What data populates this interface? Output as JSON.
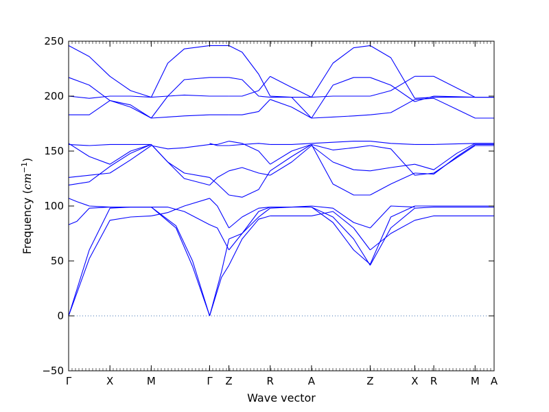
{
  "chart_data": {
    "type": "line",
    "title": "",
    "xlabel": "Wave vector",
    "ylabel_prefix": "Frequency (",
    "ylabel_unit": "cm",
    "ylabel_exp": "−1",
    "ylabel_suffix": ")",
    "ylim": [
      -50,
      250
    ],
    "yticks": [
      -50,
      0,
      50,
      100,
      150,
      200,
      250
    ],
    "grid": false,
    "legend": "none",
    "line_color": "#0000ff",
    "zero_line_color": "#3a6fb0",
    "high_symmetry_points": [
      {
        "label": "Γ",
        "x": 0.0
      },
      {
        "label": "X",
        "x": 0.5
      },
      {
        "label": "M",
        "x": 1.0
      },
      {
        "label": "Γ",
        "x": 1.707
      },
      {
        "label": "Z",
        "x": 1.94
      },
      {
        "label": "R",
        "x": 2.44
      },
      {
        "label": "A",
        "x": 2.94
      },
      {
        "label": "Z",
        "x": 3.65
      },
      {
        "label": "X",
        "x": 4.19
      },
      {
        "label": "R",
        "x": 4.42
      },
      {
        "label": "M",
        "x": 4.92
      },
      {
        "label": "A",
        "x": 5.15
      }
    ],
    "xlim": [
      0.0,
      5.15
    ],
    "series": [
      {
        "x": [
          0,
          0.25,
          0.5,
          0.75,
          1.0
        ],
        "y": [
          0,
          52,
          87,
          90,
          91
        ]
      },
      {
        "x": [
          0,
          0.25,
          0.5,
          0.75,
          1.0
        ],
        "y": [
          0,
          60,
          98,
          99,
          99
        ]
      },
      {
        "x": [
          0,
          0.1,
          0.25,
          0.5,
          0.75,
          1.0
        ],
        "y": [
          83,
          86,
          98,
          99,
          99,
          99
        ]
      },
      {
        "x": [
          0,
          0.1,
          0.25,
          0.5,
          0.75,
          1.0
        ],
        "y": [
          107,
          104,
          100,
          99,
          99,
          99
        ]
      },
      {
        "x": [
          0,
          0.25,
          0.5,
          0.75,
          1.0
        ],
        "y": [
          126,
          128,
          130,
          142,
          155
        ]
      },
      {
        "x": [
          0,
          0.25,
          0.5,
          0.75,
          1.0
        ],
        "y": [
          119,
          122,
          136,
          148,
          156
        ]
      },
      {
        "x": [
          0,
          0.25,
          0.5,
          0.75,
          1.0
        ],
        "y": [
          156,
          155,
          156,
          156,
          156
        ]
      },
      {
        "x": [
          0,
          0.25,
          0.5,
          0.75,
          1.0
        ],
        "y": [
          157,
          145,
          138,
          150,
          156
        ]
      },
      {
        "x": [
          0,
          0.25,
          0.5,
          0.75,
          1.0
        ],
        "y": [
          183,
          183,
          196,
          190,
          180
        ]
      },
      {
        "x": [
          0,
          0.25,
          0.5,
          0.75,
          1.0
        ],
        "y": [
          200,
          198,
          200,
          200,
          199
        ]
      },
      {
        "x": [
          0,
          0.25,
          0.5,
          0.75,
          1.0
        ],
        "y": [
          217,
          210,
          196,
          192,
          180
        ]
      },
      {
        "x": [
          0,
          0.25,
          0.5,
          0.75,
          1.0
        ],
        "y": [
          246,
          236,
          218,
          205,
          199
        ]
      },
      {
        "x": [
          1.0,
          1.2,
          1.4,
          1.707
        ],
        "y": [
          91,
          94,
          100,
          107
        ]
      },
      {
        "x": [
          1.0,
          1.2,
          1.4,
          1.707
        ],
        "y": [
          99,
          99,
          95,
          83
        ]
      },
      {
        "x": [
          1.0,
          1.3,
          1.5,
          1.707
        ],
        "y": [
          99,
          80,
          45,
          0
        ]
      },
      {
        "x": [
          1.0,
          1.3,
          1.5,
          1.707
        ],
        "y": [
          99,
          82,
          50,
          0
        ]
      },
      {
        "x": [
          1.0,
          1.2,
          1.4,
          1.707
        ],
        "y": [
          156,
          140,
          130,
          126
        ]
      },
      {
        "x": [
          1.0,
          1.2,
          1.4,
          1.707
        ],
        "y": [
          155,
          152,
          153,
          156
        ]
      },
      {
        "x": [
          1.0,
          1.2,
          1.4,
          1.707
        ],
        "y": [
          156,
          140,
          125,
          119
        ]
      },
      {
        "x": [
          1.0,
          1.2,
          1.4,
          1.707
        ],
        "y": [
          180,
          181,
          182,
          183
        ]
      },
      {
        "x": [
          1.0,
          1.2,
          1.4,
          1.707
        ],
        "y": [
          199,
          200,
          201,
          200
        ]
      },
      {
        "x": [
          1.0,
          1.2,
          1.4,
          1.707
        ],
        "y": [
          199,
          230,
          243,
          246
        ]
      },
      {
        "x": [
          1.0,
          1.2,
          1.4,
          1.707
        ],
        "y": [
          180,
          200,
          215,
          217
        ]
      },
      {
        "x": [
          1.707,
          1.8,
          1.94
        ],
        "y": [
          107,
          100,
          80
        ]
      },
      {
        "x": [
          1.707,
          1.8,
          1.94
        ],
        "y": [
          83,
          80,
          60
        ]
      },
      {
        "x": [
          1.707,
          1.85,
          1.94
        ],
        "y": [
          0,
          35,
          46
        ]
      },
      {
        "x": [
          1.707,
          1.85,
          1.94
        ],
        "y": [
          0,
          40,
          70
        ]
      },
      {
        "x": [
          1.707,
          1.8,
          1.94
        ],
        "y": [
          126,
          120,
          110
        ]
      },
      {
        "x": [
          1.707,
          1.8,
          1.94
        ],
        "y": [
          119,
          126,
          132
        ]
      },
      {
        "x": [
          1.707,
          1.8,
          1.94
        ],
        "y": [
          156,
          156,
          159
        ]
      },
      {
        "x": [
          1.707,
          1.8,
          1.94
        ],
        "y": [
          157,
          155,
          155
        ]
      },
      {
        "x": [
          1.707,
          1.94
        ],
        "y": [
          183,
          183
        ]
      },
      {
        "x": [
          1.707,
          1.94
        ],
        "y": [
          200,
          200
        ]
      },
      {
        "x": [
          1.707,
          1.8,
          1.94
        ],
        "y": [
          217,
          217,
          217
        ]
      },
      {
        "x": [
          1.707,
          1.94
        ],
        "y": [
          246,
          246
        ]
      },
      {
        "x": [
          1.94,
          2.1,
          2.3,
          2.44
        ],
        "y": [
          80,
          90,
          98,
          99
        ]
      },
      {
        "x": [
          1.94,
          2.1,
          2.3,
          2.44
        ],
        "y": [
          60,
          75,
          95,
          99
        ]
      },
      {
        "x": [
          1.94,
          2.1,
          2.3,
          2.44
        ],
        "y": [
          46,
          70,
          88,
          91
        ]
      },
      {
        "x": [
          1.94,
          2.1,
          2.3,
          2.44
        ],
        "y": [
          70,
          75,
          90,
          98
        ]
      },
      {
        "x": [
          1.94,
          2.1,
          2.3,
          2.44
        ],
        "y": [
          110,
          108,
          115,
          132
        ]
      },
      {
        "x": [
          1.94,
          2.1,
          2.3,
          2.44
        ],
        "y": [
          132,
          135,
          130,
          128
        ]
      },
      {
        "x": [
          1.94,
          2.1,
          2.3,
          2.44
        ],
        "y": [
          159,
          157,
          150,
          138
        ]
      },
      {
        "x": [
          1.94,
          2.1,
          2.3,
          2.44
        ],
        "y": [
          155,
          156,
          157,
          156
        ]
      },
      {
        "x": [
          1.94,
          2.1,
          2.3,
          2.44
        ],
        "y": [
          183,
          183,
          186,
          197
        ]
      },
      {
        "x": [
          1.94,
          2.1,
          2.3,
          2.44
        ],
        "y": [
          200,
          200,
          205,
          218
        ]
      },
      {
        "x": [
          1.94,
          2.1,
          2.3,
          2.44
        ],
        "y": [
          217,
          215,
          200,
          199
        ]
      },
      {
        "x": [
          1.94,
          2.1,
          2.3,
          2.44
        ],
        "y": [
          246,
          240,
          220,
          200
        ]
      },
      {
        "x": [
          2.44,
          2.7,
          2.94
        ],
        "y": [
          91,
          91,
          91
        ]
      },
      {
        "x": [
          2.44,
          2.7,
          2.94
        ],
        "y": [
          98,
          99,
          99
        ]
      },
      {
        "x": [
          2.44,
          2.7,
          2.94
        ],
        "y": [
          99,
          99,
          100
        ]
      },
      {
        "x": [
          2.44,
          2.7,
          2.94
        ],
        "y": [
          132,
          145,
          156
        ]
      },
      {
        "x": [
          2.44,
          2.7,
          2.94
        ],
        "y": [
          128,
          140,
          155
        ]
      },
      {
        "x": [
          2.44,
          2.7,
          2.94
        ],
        "y": [
          156,
          156,
          157
        ]
      },
      {
        "x": [
          2.44,
          2.7,
          2.94
        ],
        "y": [
          138,
          150,
          156
        ]
      },
      {
        "x": [
          2.44,
          2.7,
          2.94
        ],
        "y": [
          197,
          190,
          180
        ]
      },
      {
        "x": [
          2.44,
          2.7,
          2.94
        ],
        "y": [
          218,
          208,
          199
        ]
      },
      {
        "x": [
          2.44,
          2.7,
          2.94
        ],
        "y": [
          199,
          199,
          199
        ]
      },
      {
        "x": [
          2.44,
          2.7,
          2.94
        ],
        "y": [
          200,
          199,
          180
        ]
      },
      {
        "x": [
          2.94,
          3.2,
          3.45,
          3.65
        ],
        "y": [
          91,
          95,
          80,
          60
        ]
      },
      {
        "x": [
          2.94,
          3.2,
          3.45,
          3.65
        ],
        "y": [
          100,
          98,
          85,
          80
        ]
      },
      {
        "x": [
          2.94,
          3.2,
          3.45,
          3.65
        ],
        "y": [
          99,
          90,
          70,
          46
        ]
      },
      {
        "x": [
          2.94,
          3.2,
          3.45,
          3.65
        ],
        "y": [
          99,
          85,
          60,
          47
        ]
      },
      {
        "x": [
          2.94,
          3.2,
          3.45,
          3.65
        ],
        "y": [
          156,
          120,
          110,
          110
        ]
      },
      {
        "x": [
          2.94,
          3.2,
          3.45,
          3.65
        ],
        "y": [
          155,
          140,
          133,
          132
        ]
      },
      {
        "x": [
          2.94,
          3.2,
          3.45,
          3.65
        ],
        "y": [
          157,
          158,
          159,
          159
        ]
      },
      {
        "x": [
          2.94,
          3.2,
          3.45,
          3.65
        ],
        "y": [
          156,
          151,
          153,
          155
        ]
      },
      {
        "x": [
          2.94,
          3.2,
          3.45,
          3.65
        ],
        "y": [
          180,
          181,
          182,
          183
        ]
      },
      {
        "x": [
          2.94,
          3.2,
          3.45,
          3.65
        ],
        "y": [
          199,
          200,
          200,
          200
        ]
      },
      {
        "x": [
          2.94,
          3.2,
          3.45,
          3.65
        ],
        "y": [
          180,
          210,
          217,
          217
        ]
      },
      {
        "x": [
          2.94,
          3.2,
          3.45,
          3.65
        ],
        "y": [
          199,
          230,
          244,
          246
        ]
      },
      {
        "x": [
          3.65,
          3.9,
          4.19
        ],
        "y": [
          60,
          75,
          87
        ]
      },
      {
        "x": [
          3.65,
          3.9,
          4.19
        ],
        "y": [
          80,
          100,
          99
        ]
      },
      {
        "x": [
          3.65,
          3.9,
          4.19
        ],
        "y": [
          46,
          80,
          98
        ]
      },
      {
        "x": [
          3.65,
          3.9,
          4.19
        ],
        "y": [
          47,
          90,
          100
        ]
      },
      {
        "x": [
          3.65,
          3.9,
          4.19
        ],
        "y": [
          110,
          120,
          130
        ]
      },
      {
        "x": [
          3.65,
          3.9,
          4.19
        ],
        "y": [
          132,
          135,
          138
        ]
      },
      {
        "x": [
          3.65,
          3.9,
          4.19
        ],
        "y": [
          159,
          157,
          156
        ]
      },
      {
        "x": [
          3.65,
          3.9,
          4.19
        ],
        "y": [
          155,
          152,
          128
        ]
      },
      {
        "x": [
          3.65,
          3.9,
          4.19
        ],
        "y": [
          183,
          185,
          197
        ]
      },
      {
        "x": [
          3.65,
          3.9,
          4.19
        ],
        "y": [
          200,
          205,
          218
        ]
      },
      {
        "x": [
          3.65,
          3.9,
          4.19
        ],
        "y": [
          217,
          210,
          195
        ]
      },
      {
        "x": [
          3.65,
          3.9,
          4.19
        ],
        "y": [
          246,
          235,
          198
        ]
      },
      {
        "x": [
          4.19,
          4.42,
          4.92,
          5.15
        ],
        "y": [
          87,
          91,
          91,
          91
        ]
      },
      {
        "x": [
          4.19,
          4.42,
          4.92,
          5.15
        ],
        "y": [
          98,
          99,
          99,
          99
        ]
      },
      {
        "x": [
          4.19,
          4.42,
          4.92,
          5.15
        ],
        "y": [
          100,
          100,
          100,
          100
        ]
      },
      {
        "x": [
          4.19,
          4.42,
          4.7,
          4.92,
          5.15
        ],
        "y": [
          130,
          129,
          145,
          156,
          156
        ]
      },
      {
        "x": [
          4.19,
          4.42,
          4.7,
          4.92,
          5.15
        ],
        "y": [
          138,
          133,
          148,
          157,
          157
        ]
      },
      {
        "x": [
          4.19,
          4.42,
          4.92,
          5.15
        ],
        "y": [
          156,
          156,
          157,
          157
        ]
      },
      {
        "x": [
          4.19,
          4.42,
          4.92,
          5.15
        ],
        "y": [
          128,
          130,
          155,
          155
        ]
      },
      {
        "x": [
          4.19,
          4.42,
          4.7,
          4.92,
          5.15
        ],
        "y": [
          197,
          198,
          188,
          180,
          180
        ]
      },
      {
        "x": [
          4.19,
          4.42,
          4.92,
          5.15
        ],
        "y": [
          218,
          218,
          199,
          199
        ]
      },
      {
        "x": [
          4.19,
          4.42,
          4.92,
          5.15
        ],
        "y": [
          195,
          200,
          199,
          199
        ]
      },
      {
        "x": [
          4.19,
          4.42,
          4.92,
          5.15
        ],
        "y": [
          198,
          199,
          199,
          199
        ]
      }
    ]
  }
}
